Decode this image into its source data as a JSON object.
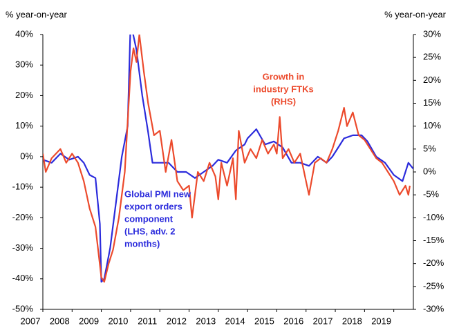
{
  "chart_data": {
    "type": "line",
    "y_label": "% year-on-year",
    "y2_label": "% year-on-year",
    "xlim": [
      2007,
      2019.67
    ],
    "xticks": [
      2007,
      2008,
      2009,
      2010,
      2011,
      2012,
      2013,
      2014,
      2015,
      2016,
      2017,
      2018,
      2019
    ],
    "ylim": [
      -50,
      40
    ],
    "yticks": [
      {
        "value": -50,
        "label": "-50%"
      },
      {
        "value": -40,
        "label": "-40%"
      },
      {
        "value": -30,
        "label": "-30%"
      },
      {
        "value": -20,
        "label": "-20%"
      },
      {
        "value": -10,
        "label": "-10%"
      },
      {
        "value": 0,
        "label": "0%"
      },
      {
        "value": 10,
        "label": "10%"
      },
      {
        "value": 20,
        "label": "20%"
      },
      {
        "value": 30,
        "label": "30%"
      },
      {
        "value": 40,
        "label": "40%"
      }
    ],
    "y2lim": [
      -30,
      30
    ],
    "y2ticks": [
      {
        "value": -30,
        "label": "-30%"
      },
      {
        "value": -25,
        "label": "-25%"
      },
      {
        "value": -20,
        "label": "-20%"
      },
      {
        "value": -15,
        "label": "-15%"
      },
      {
        "value": -10,
        "label": "-10%"
      },
      {
        "value": -5,
        "label": "-5%"
      },
      {
        "value": 0,
        "label": "0%"
      },
      {
        "value": 5,
        "label": "5%"
      },
      {
        "value": 10,
        "label": "10%"
      },
      {
        "value": 15,
        "label": "15%"
      },
      {
        "value": 20,
        "label": "20%"
      },
      {
        "value": 25,
        "label": "25%"
      },
      {
        "value": 30,
        "label": "30%"
      }
    ],
    "series": [
      {
        "color": "#2b2bdc",
        "axis": "y",
        "x": [
          2007.0,
          2007.3,
          2007.6,
          2007.9,
          2008.2,
          2008.4,
          2008.6,
          2008.8,
          2008.95,
          2009.0,
          2009.1,
          2009.3,
          2009.5,
          2009.7,
          2009.9,
          2010.0,
          2010.2,
          2010.4,
          2010.6,
          2010.75,
          2011.0,
          2011.3,
          2011.6,
          2011.9,
          2012.2,
          2012.5,
          2012.8,
          2013.0,
          2013.3,
          2013.6,
          2013.9,
          2014.0,
          2014.3,
          2014.6,
          2014.9,
          2015.2,
          2015.5,
          2015.8,
          2016.1,
          2016.4,
          2016.7,
          2016.9,
          2017.1,
          2017.3,
          2017.6,
          2017.9,
          2018.1,
          2018.4,
          2018.7,
          2019.0,
          2019.3,
          2019.5,
          2019.67
        ],
        "values": [
          -1,
          -2,
          1,
          -1,
          0,
          -2,
          -6,
          -7,
          -22,
          -41,
          -40,
          -30,
          -15,
          0,
          10,
          44,
          35,
          20,
          8,
          -2,
          -2,
          -2,
          -5,
          -5,
          -7,
          -5,
          -3,
          -1,
          -2,
          2,
          4,
          6,
          9,
          4,
          5,
          3,
          -2,
          -2,
          -3,
          0,
          -2,
          0,
          3,
          6,
          7,
          7,
          5,
          0,
          -2,
          -6,
          -8,
          -2,
          -4
        ]
      },
      {
        "color": "#ec4a2c",
        "axis": "y2",
        "x": [
          2007.0,
          2007.1,
          2007.3,
          2007.6,
          2007.8,
          2008.0,
          2008.2,
          2008.4,
          2008.6,
          2008.8,
          2009.0,
          2009.1,
          2009.25,
          2009.4,
          2009.6,
          2009.8,
          2010.0,
          2010.1,
          2010.2,
          2010.3,
          2010.45,
          2010.6,
          2010.8,
          2011.0,
          2011.2,
          2011.4,
          2011.6,
          2011.8,
          2012.0,
          2012.1,
          2012.3,
          2012.5,
          2012.7,
          2012.9,
          2013.0,
          2013.1,
          2013.3,
          2013.5,
          2013.6,
          2013.7,
          2013.9,
          2014.1,
          2014.3,
          2014.5,
          2014.7,
          2014.9,
          2015.0,
          2015.1,
          2015.2,
          2015.4,
          2015.6,
          2015.8,
          2016.0,
          2016.1,
          2016.3,
          2016.5,
          2016.7,
          2016.9,
          2017.1,
          2017.3,
          2017.4,
          2017.6,
          2017.8,
          2018.0,
          2018.2,
          2018.4,
          2018.6,
          2018.8,
          2019.0,
          2019.2,
          2019.4,
          2019.5,
          2019.55
        ],
        "values": [
          4,
          0,
          3,
          5,
          2,
          4,
          2,
          -2,
          -8,
          -12,
          -23,
          -24,
          -20,
          -17,
          -10,
          0,
          22,
          27,
          24,
          30,
          22,
          15,
          8,
          9,
          0,
          7,
          -2,
          -4,
          -3,
          -10,
          0,
          -2,
          2,
          -1,
          -6,
          2,
          -3,
          3,
          -6,
          9,
          2,
          5,
          3,
          7,
          4,
          6,
          4,
          12,
          3,
          5,
          2,
          4,
          -2,
          -5,
          2,
          3,
          2,
          5,
          9,
          14,
          10,
          13,
          8,
          7,
          5,
          3,
          2,
          0,
          -2,
          -5,
          -3,
          -5,
          -3
        ]
      }
    ],
    "annotations": [
      {
        "lines": [
          "Growth in",
          "industry FTKs",
          "(RHS)"
        ],
        "color": "#ec4a2c"
      },
      {
        "lines": [
          "Global PMI new",
          "export orders",
          "component",
          "(LHS, adv. 2",
          "months)"
        ],
        "color": "#2b2bdc"
      }
    ]
  }
}
